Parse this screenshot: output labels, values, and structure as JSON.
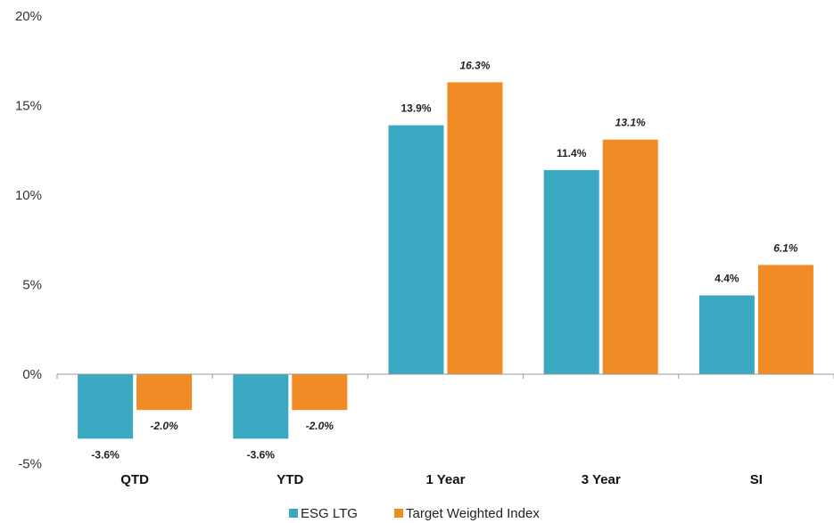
{
  "chart_data": {
    "type": "bar",
    "categories": [
      "QTD",
      "YTD",
      "1 Year",
      "3 Year",
      "SI"
    ],
    "series": [
      {
        "name": "ESG LTG",
        "values": [
          -3.6,
          -3.6,
          13.9,
          11.4,
          4.4
        ],
        "labels": [
          "-3.6%",
          "-3.6%",
          "13.9%",
          "11.4%",
          "4.4%"
        ],
        "color": "#3aa8c1",
        "label_style": "bold"
      },
      {
        "name": "Target Weighted Index",
        "values": [
          -2.0,
          -2.0,
          16.3,
          13.1,
          6.1
        ],
        "labels": [
          "-2.0%",
          "-2.0%",
          "16.3%",
          "13.1%",
          "6.1%"
        ],
        "color": "#f18b25",
        "label_style": "bold-italic"
      }
    ],
    "yticks": [
      20,
      15,
      10,
      5,
      0,
      -5
    ],
    "ytick_labels": [
      "20%",
      "15%",
      "10%",
      "5%",
      "0%",
      "-5%"
    ],
    "ylim": [
      -5,
      20
    ],
    "grid": false,
    "legend_position": "bottom-center",
    "title": "",
    "xlabel": "",
    "ylabel": ""
  }
}
